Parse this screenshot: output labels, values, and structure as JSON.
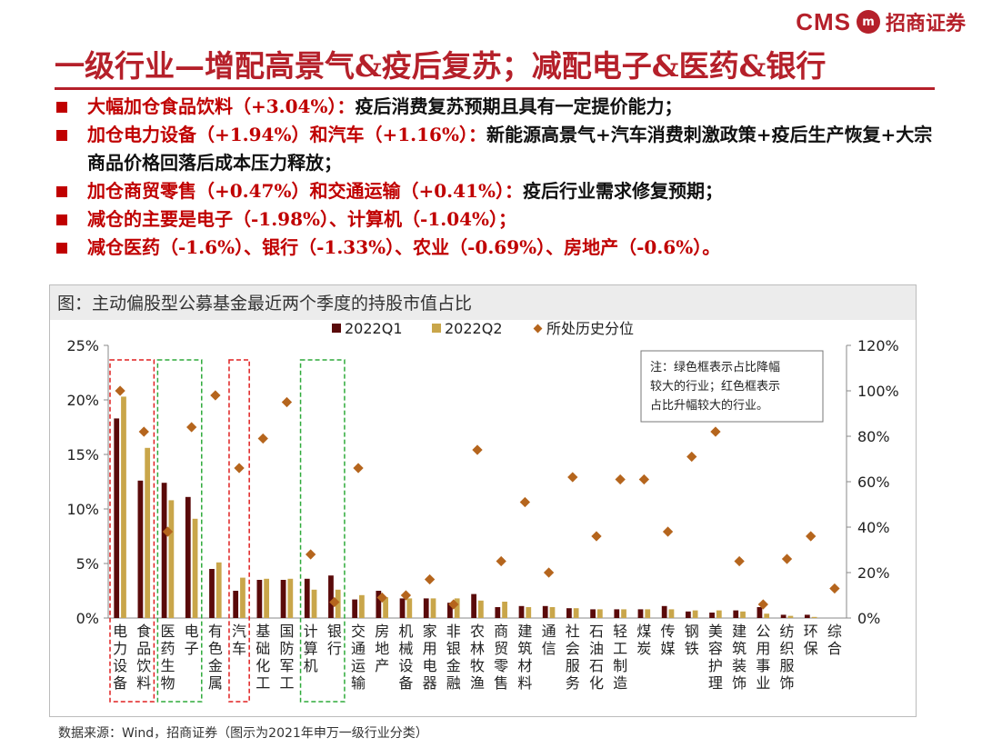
{
  "header": {
    "logo_text": "CMS",
    "logo_seal": "m",
    "logo_name": "招商证券",
    "title": "一级行业—增配高景气&疫后复苏；减配电子&医药&银行"
  },
  "bullets": [
    {
      "red": "大幅加仓食品饮料（+3.04%）：",
      "black": "疫后消费复苏预期且具有一定提价能力；"
    },
    {
      "red": "加仓电力设备（+1.94%）和汽车（+1.16%）：",
      "black": "新能源高景气+汽车消费刺激政策+疫后生产恢复+大宗商品价格回落后成本压力释放；"
    },
    {
      "red": "加仓商贸零售（+0.47%）和交通运输（+0.41%）：",
      "black": "疫后行业需求修复预期；"
    },
    {
      "red": "减仓的主要是电子（-1.98%）、计算机（-1.04%）；",
      "black": ""
    },
    {
      "red": "减仓医药（-1.6%）、银行（-1.33%）、农业（-0.69%）、房地产（-0.6%）。",
      "black": ""
    }
  ],
  "figure_title": "图：主动偏股型公募基金最近两个季度的持股市值占比",
  "source": "数据来源：Wind，招商证券（图示为2021年申万一级行业分类）",
  "colors": {
    "q1": "#5a0a0a",
    "q2": "#c9a64a",
    "pct": "#b5651d",
    "green_box": "#2eaa3a",
    "red_box": "#e02020"
  },
  "chart_data": {
    "type": "bar",
    "categories": [
      "电力设备",
      "食品饮料",
      "医药生物",
      "电子",
      "有色金属",
      "汽车",
      "基础化工",
      "国防军工",
      "计算机",
      "银行",
      "交通运输",
      "房地产",
      "机械设备",
      "家用电器",
      "非银金融",
      "农林牧渔",
      "商贸零售",
      "建筑材料",
      "通信",
      "社会服务",
      "石油石化",
      "轻工制造",
      "煤炭",
      "传媒",
      "钢铁",
      "美容护理",
      "建筑装饰",
      "公用事业",
      "纺织服饰",
      "环保",
      "综合"
    ],
    "series": [
      {
        "name": "2022Q1",
        "values": [
          18.3,
          12.6,
          12.4,
          11.1,
          4.5,
          2.5,
          3.5,
          3.5,
          3.6,
          3.9,
          1.7,
          2.5,
          1.8,
          1.8,
          1.4,
          2.2,
          1.0,
          1.1,
          1.1,
          0.9,
          0.8,
          0.8,
          0.8,
          1.1,
          0.6,
          0.5,
          0.7,
          1.0,
          0.3,
          0.3,
          0.0
        ]
      },
      {
        "name": "2022Q2",
        "values": [
          20.3,
          15.6,
          10.8,
          9.1,
          5.1,
          3.7,
          3.6,
          3.6,
          2.6,
          2.6,
          2.1,
          1.9,
          1.8,
          1.8,
          1.8,
          1.6,
          1.5,
          1.0,
          1.0,
          0.9,
          0.8,
          0.8,
          0.8,
          0.8,
          0.7,
          0.7,
          0.6,
          0.4,
          0.2,
          0.1,
          0.0
        ]
      },
      {
        "name": "所处历史分位",
        "axis": "right",
        "values": [
          100,
          82,
          38,
          84,
          98,
          66,
          79,
          95,
          28,
          7,
          66,
          9,
          10,
          17,
          6,
          74,
          25,
          51,
          20,
          62,
          36,
          61,
          61,
          38,
          71,
          82,
          25,
          6,
          26,
          36,
          13
        ]
      }
    ],
    "ylim": [
      0,
      25
    ],
    "yticks": [
      "0%",
      "5%",
      "10%",
      "15%",
      "20%",
      "25%"
    ],
    "y2lim": [
      0,
      120
    ],
    "y2ticks": [
      "0%",
      "20%",
      "40%",
      "60%",
      "80%",
      "100%",
      "120%"
    ],
    "legend": [
      "2022Q1",
      "2022Q2",
      "所处历史分位"
    ],
    "legend_position": "top",
    "annotation": [
      "注：绿色框表示占比降幅",
      "较大的行业；红色框表示",
      "占比升幅较大的行业。"
    ],
    "red_boxes": [
      [
        0,
        1
      ],
      [
        5,
        5
      ]
    ],
    "green_boxes": [
      [
        2,
        3
      ],
      [
        8,
        9
      ]
    ]
  }
}
